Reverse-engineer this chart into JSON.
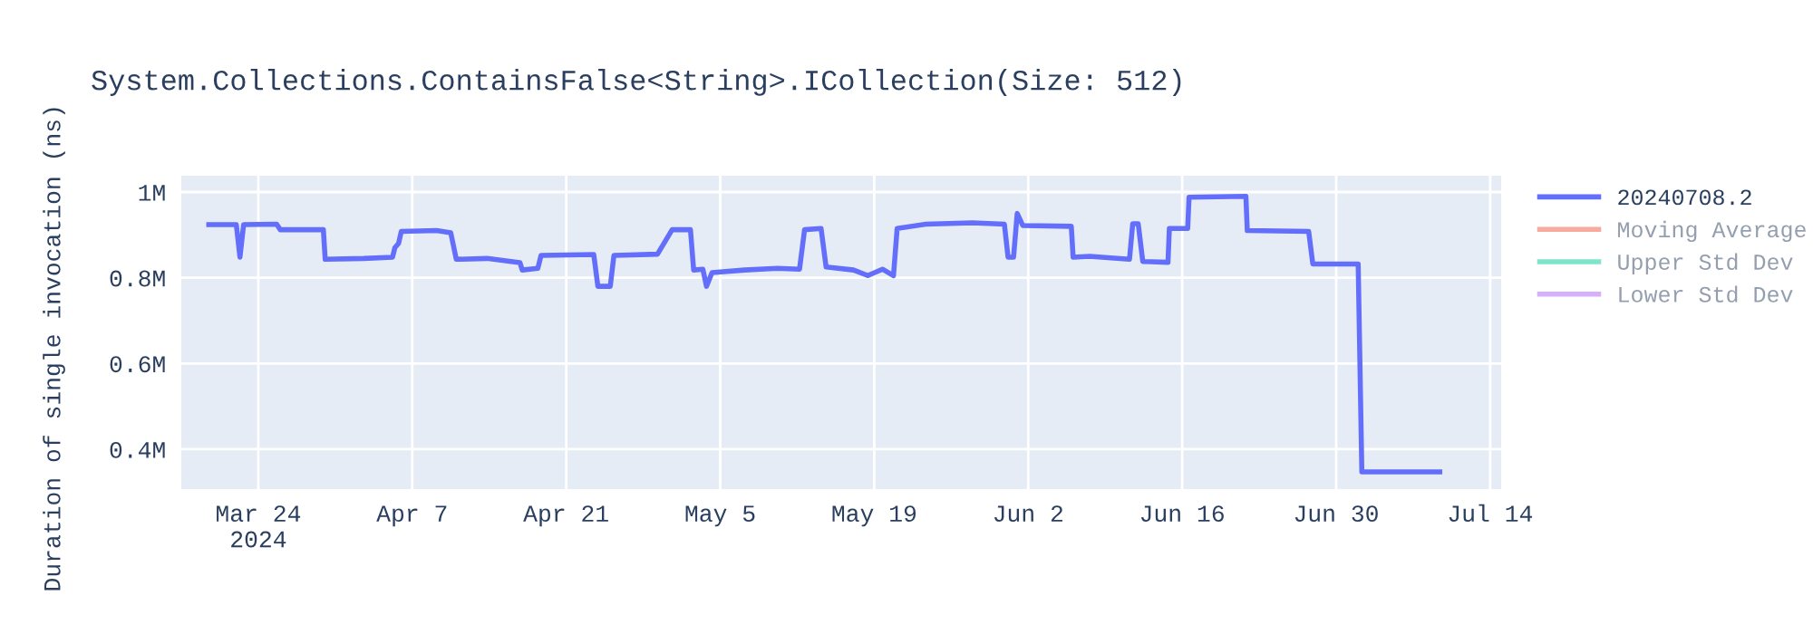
{
  "chart_data": {
    "type": "line",
    "title": "System.Collections.ContainsFalse<String>.ICollection(Size: 512)",
    "ylabel": "Duration of single invocation (ns)",
    "x": [
      "2024-03-19T12:00",
      "2024-03-22T00:00",
      "2024-03-22T08:00",
      "2024-03-22T16:00",
      "2024-03-25T16:00",
      "2024-03-26T00:00",
      "2024-03-29T22:00",
      "2024-03-30T02:00",
      "2024-04-02T14:00",
      "2024-04-05T05:00",
      "2024-04-05T10:00",
      "2024-04-05T18:00",
      "2024-04-06T00:00",
      "2024-04-09T05:00",
      "2024-04-10T12:00",
      "2024-04-11T00:00",
      "2024-04-13T19:00",
      "2024-04-16T19:00",
      "2024-04-17T00:00",
      "2024-04-18T10:00",
      "2024-04-18T17:00",
      "2024-04-23T12:00",
      "2024-04-23T21:00",
      "2024-04-25T00:00",
      "2024-04-25T08:00",
      "2024-04-29T07:00",
      "2024-04-30T15:00",
      "2024-05-02T07:00",
      "2024-05-02T14:00",
      "2024-05-03T10:00",
      "2024-05-03T18:00",
      "2024-05-04T06:00",
      "2024-05-07T05:00",
      "2024-05-10T05:00",
      "2024-05-12T05:00",
      "2024-05-12T16:00",
      "2024-05-14T04:00",
      "2024-05-14T15:00",
      "2024-05-17T03:00",
      "2024-05-18T10:00",
      "2024-05-19T18:00",
      "2024-05-20T18:00",
      "2024-05-21T02:00",
      "2024-05-23T17:00",
      "2024-05-27T22:00",
      "2024-05-30T20:00",
      "2024-05-31T04:00",
      "2024-05-31T16:00",
      "2024-06-01T00:00",
      "2024-06-01T12:00",
      "2024-06-05T22:00",
      "2024-06-06T02:00",
      "2024-06-07T14:00",
      "2024-06-11T05:00",
      "2024-06-11T12:00",
      "2024-06-12T00:00",
      "2024-06-12T10:00",
      "2024-06-14T17:00",
      "2024-06-14T20:00",
      "2024-06-16T12:00",
      "2024-06-16T15:00",
      "2024-06-21T19:00",
      "2024-06-21T22:00",
      "2024-06-27T12:00",
      "2024-06-27T21:00",
      "2024-07-02T00:00",
      "2024-07-02T08:00",
      "2024-07-09T10:00"
    ],
    "series": [
      {
        "name": "20240708.2",
        "color": "#636efa",
        "values": [
          924000,
          924000,
          848000,
          924000,
          925000,
          912000,
          912000,
          843000,
          845000,
          848000,
          870000,
          880000,
          908000,
          910000,
          905000,
          843000,
          845000,
          835000,
          818000,
          822000,
          852000,
          854000,
          780000,
          780000,
          852000,
          855000,
          912000,
          912000,
          818000,
          820000,
          780000,
          812000,
          818000,
          822000,
          820000,
          912000,
          915000,
          825000,
          818000,
          805000,
          820000,
          805000,
          915000,
          925000,
          928000,
          925000,
          848000,
          848000,
          950000,
          922000,
          920000,
          848000,
          850000,
          843000,
          926000,
          926000,
          838000,
          836000,
          915000,
          915000,
          988000,
          990000,
          910000,
          908000,
          832000,
          832000,
          347000,
          347000
        ]
      },
      {
        "name": "Moving Average",
        "color": "#ef553b",
        "values": [
          null,
          null,
          null,
          null,
          null,
          null,
          null,
          null,
          null,
          null,
          null,
          null,
          null,
          null,
          null,
          null,
          null,
          null,
          null,
          null,
          null,
          null,
          null,
          null,
          null,
          null,
          null,
          null,
          null,
          null,
          null,
          null,
          null,
          null,
          null,
          null,
          null,
          null,
          null,
          null,
          null,
          null,
          null,
          null,
          null,
          null,
          null,
          null,
          null,
          null,
          null,
          null,
          null,
          null,
          null,
          null,
          null,
          null,
          null,
          null,
          null,
          null,
          null,
          null,
          null,
          null,
          null,
          null
        ]
      },
      {
        "name": "Upper Std Dev",
        "color": "#00cc96",
        "values": [
          null,
          null,
          null,
          null,
          null,
          null,
          null,
          null,
          null,
          null,
          null,
          null,
          null,
          null,
          null,
          null,
          null,
          null,
          null,
          null,
          null,
          null,
          null,
          null,
          null,
          null,
          null,
          null,
          null,
          null,
          null,
          null,
          null,
          null,
          null,
          null,
          null,
          null,
          null,
          null,
          null,
          null,
          null,
          null,
          null,
          null,
          null,
          null,
          null,
          null,
          null,
          null,
          null,
          null,
          null,
          null,
          null,
          null,
          null,
          null,
          null,
          null,
          null,
          null,
          null,
          null,
          null,
          null
        ]
      },
      {
        "name": "Lower Std Dev",
        "color": "#ab63fa",
        "values": [
          null,
          null,
          null,
          null,
          null,
          null,
          null,
          null,
          null,
          null,
          null,
          null,
          null,
          null,
          null,
          null,
          null,
          null,
          null,
          null,
          null,
          null,
          null,
          null,
          null,
          null,
          null,
          null,
          null,
          null,
          null,
          null,
          null,
          null,
          null,
          null,
          null,
          null,
          null,
          null,
          null,
          null,
          null,
          null,
          null,
          null,
          null,
          null,
          null,
          null,
          null,
          null,
          null,
          null,
          null,
          null,
          null,
          null,
          null,
          null,
          null,
          null,
          null,
          null,
          null,
          null,
          null,
          null
        ]
      }
    ],
    "xlim": [
      "2024-03-17",
      "2024-07-15"
    ],
    "xticks": [
      {
        "value": "2024-03-24",
        "label": "Mar 24\n2024"
      },
      {
        "value": "2024-04-07",
        "label": "Apr 7"
      },
      {
        "value": "2024-04-21",
        "label": "Apr 21"
      },
      {
        "value": "2024-05-05",
        "label": "May 5"
      },
      {
        "value": "2024-05-19",
        "label": "May 19"
      },
      {
        "value": "2024-06-02",
        "label": "Jun 2"
      },
      {
        "value": "2024-06-16",
        "label": "Jun 16"
      },
      {
        "value": "2024-06-30",
        "label": "Jun 30"
      },
      {
        "value": "2024-07-14",
        "label": "Jul 14"
      }
    ],
    "ylim": [
      307000,
      1038000
    ],
    "yticks": [
      {
        "value": 400000,
        "label": "0.4M"
      },
      {
        "value": 600000,
        "label": "0.6M"
      },
      {
        "value": 800000,
        "label": "0.8M"
      },
      {
        "value": 1000000,
        "label": "1M"
      }
    ],
    "grid": true,
    "legend": "right",
    "line_style": "solid"
  }
}
